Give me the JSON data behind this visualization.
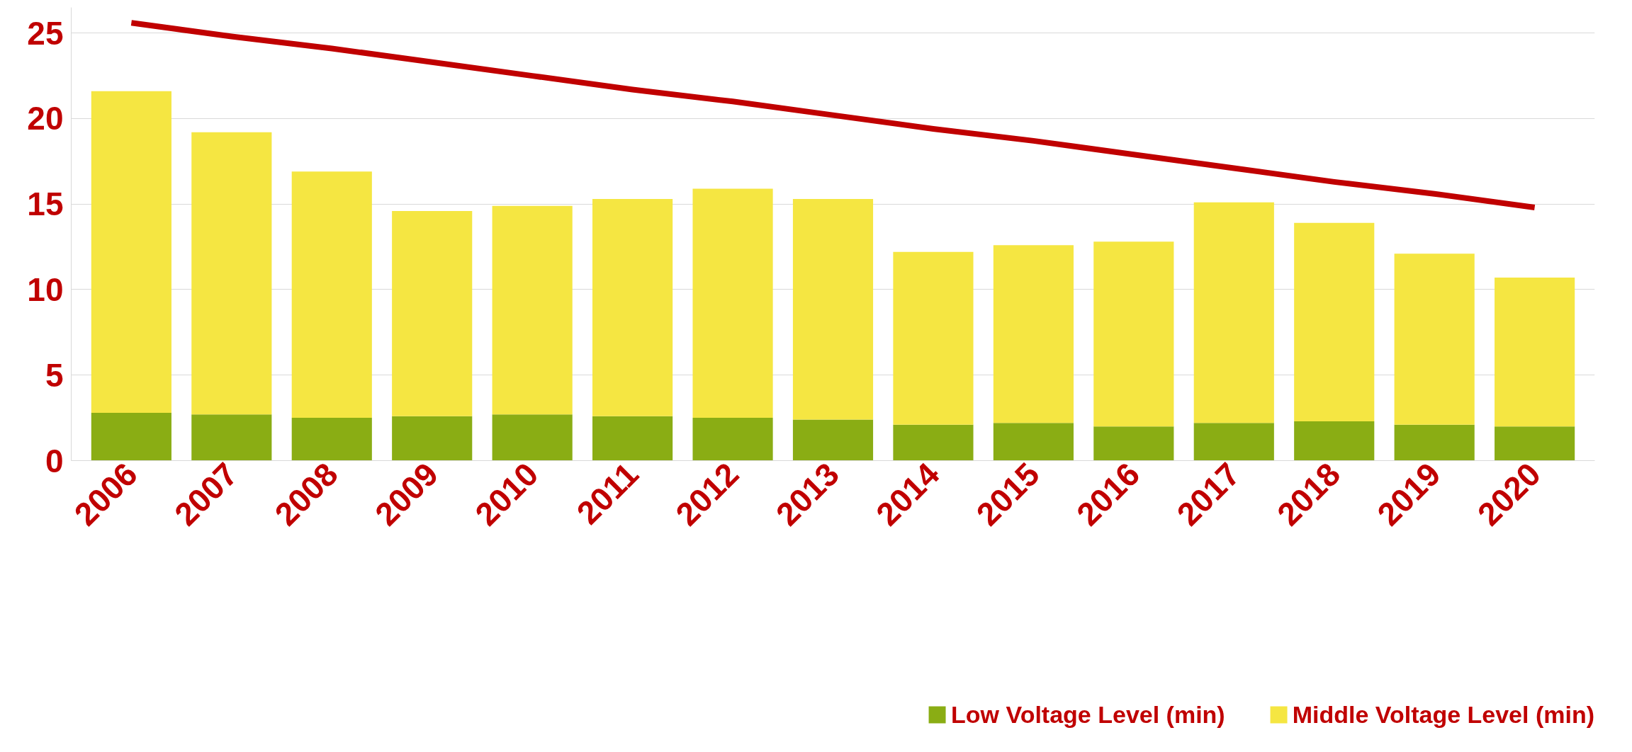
{
  "chart_data": {
    "type": "bar",
    "stacked": true,
    "categories": [
      "2006",
      "2007",
      "2008",
      "2009",
      "2010",
      "2011",
      "2012",
      "2013",
      "2014",
      "2015",
      "2016",
      "2017",
      "2018",
      "2019",
      "2020"
    ],
    "series": [
      {
        "name": "Low Voltage Level (min)",
        "color": "#8aad14",
        "values": [
          2.8,
          2.7,
          2.5,
          2.6,
          2.7,
          2.6,
          2.5,
          2.4,
          2.1,
          2.2,
          2.0,
          2.2,
          2.3,
          2.1,
          2.0
        ]
      },
      {
        "name": "Middle Voltage Level (min)",
        "color": "#f5e642",
        "values": [
          18.8,
          16.5,
          14.4,
          12.0,
          12.2,
          12.7,
          13.4,
          12.9,
          10.1,
          10.4,
          10.8,
          12.9,
          11.6,
          10.0,
          8.7
        ]
      },
      {
        "type": "line",
        "color": "#c00000",
        "values": [
          25.6,
          24.8,
          24.1,
          23.3,
          22.5,
          21.7,
          21.0,
          20.2,
          19.4,
          18.7,
          17.9,
          17.1,
          16.3,
          15.6,
          14.8
        ]
      }
    ],
    "ylim": [
      0,
      26.5
    ],
    "yticks": [
      0,
      5,
      10,
      15,
      20,
      25
    ],
    "grid": "y",
    "legend": "bottom"
  }
}
